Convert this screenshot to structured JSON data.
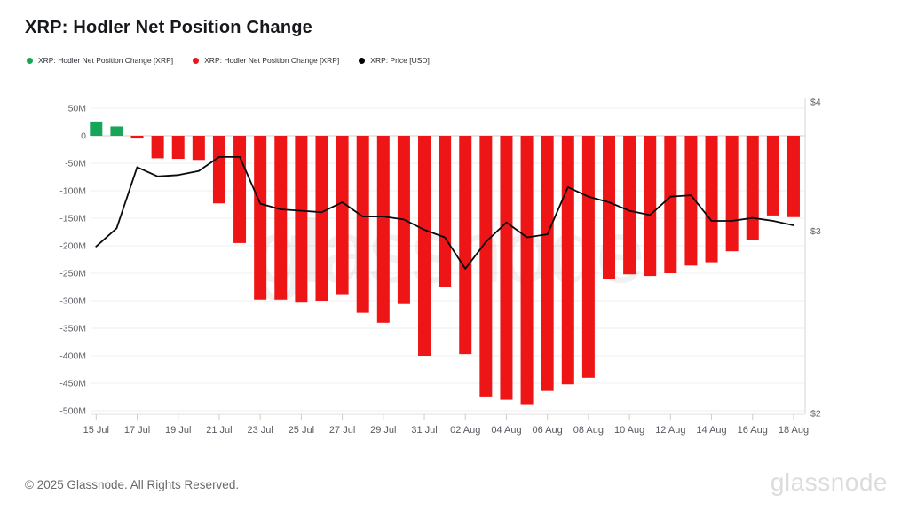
{
  "title": "XRP: Hodler Net Position Change",
  "legend": {
    "items": [
      {
        "label": "XRP: Hodler Net Position Change [XRP]",
        "color": "#17a558"
      },
      {
        "label": "XRP: Hodler Net Position Change [XRP]",
        "color": "#ed1515"
      },
      {
        "label": "XRP: Price [USD]",
        "color": "#000000"
      }
    ]
  },
  "watermark": "glassnode",
  "footer": {
    "copyright": "© 2025 Glassnode. All Rights Reserved.",
    "brand": "glassnode"
  },
  "chart_data": {
    "type": "bar",
    "title": "XRP: Hodler Net Position Change",
    "categories": [
      "15 Jul",
      "16 Jul",
      "17 Jul",
      "18 Jul",
      "19 Jul",
      "20 Jul",
      "21 Jul",
      "22 Jul",
      "23 Jul",
      "24 Jul",
      "25 Jul",
      "26 Jul",
      "27 Jul",
      "28 Jul",
      "29 Jul",
      "30 Jul",
      "31 Jul",
      "01 Aug",
      "02 Aug",
      "03 Aug",
      "04 Aug",
      "05 Aug",
      "06 Aug",
      "07 Aug",
      "08 Aug",
      "09 Aug",
      "10 Aug",
      "11 Aug",
      "12 Aug",
      "13 Aug",
      "14 Aug",
      "15 Aug",
      "16 Aug",
      "17 Aug",
      "18 Aug"
    ],
    "series": [
      {
        "name": "XRP: Hodler Net Position Change [XRP]",
        "type": "bar",
        "axis": "left",
        "unit": "XRP (millions)",
        "positive_color": "#17a558",
        "negative_color": "#ed1515",
        "values": [
          26,
          17,
          -5,
          -41,
          -42,
          -44,
          -123,
          -195,
          -298,
          -298,
          -302,
          -300,
          -288,
          -322,
          -340,
          -306,
          -400,
          -275,
          -397,
          -474,
          -480,
          -488,
          -464,
          -452,
          -440,
          -260,
          -252,
          -255,
          -250,
          -236,
          -230,
          -210,
          -190,
          -145,
          -148
        ]
      },
      {
        "name": "XRP: Price [USD]",
        "type": "line",
        "axis": "right",
        "unit": "USD",
        "color": "#0a0a0a",
        "values": [
          2.9,
          3.02,
          3.46,
          3.39,
          3.4,
          3.43,
          3.54,
          3.54,
          3.19,
          3.15,
          3.14,
          3.13,
          3.2,
          3.1,
          3.1,
          3.08,
          3.01,
          2.96,
          2.76,
          2.93,
          3.06,
          2.96,
          2.98,
          3.31,
          3.24,
          3.2,
          3.14,
          3.11,
          3.24,
          3.25,
          3.07,
          3.07,
          3.09,
          3.07,
          3.04
        ]
      }
    ],
    "left_axis": {
      "tick_labels": [
        "50M",
        "0",
        "-50M",
        "-100M",
        "-150M",
        "-200M",
        "-250M",
        "-300M",
        "-350M",
        "-400M",
        "-450M",
        "-500M"
      ],
      "tick_values": [
        50,
        0,
        -50,
        -100,
        -150,
        -200,
        -250,
        -300,
        -350,
        -400,
        -450,
        -500
      ],
      "range": [
        -520,
        60
      ]
    },
    "right_axis": {
      "tick_labels": [
        "$4",
        "$3",
        "$2"
      ],
      "tick_values": [
        4,
        3,
        2
      ],
      "scale": "log",
      "range": [
        2,
        4
      ]
    },
    "x_axis": {
      "tick_labels": [
        "15 Jul",
        "17 Jul",
        "19 Jul",
        "21 Jul",
        "23 Jul",
        "25 Jul",
        "27 Jul",
        "29 Jul",
        "31 Jul",
        "02 Aug",
        "04 Aug",
        "06 Aug",
        "08 Aug",
        "10 Aug",
        "12 Aug",
        "14 Aug",
        "16 Aug",
        "18 Aug"
      ],
      "tick_day_step": 2
    },
    "grid": true,
    "legend_position": "top-left"
  }
}
